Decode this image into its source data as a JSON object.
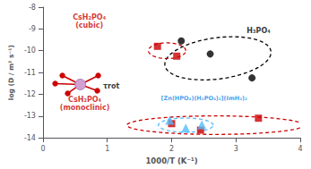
{
  "chart_data": {
    "type": "scatter",
    "xlabel": "1000/T (K⁻¹)",
    "ylabel": "log (D / m² s⁻¹)",
    "xlim": [
      0,
      4
    ],
    "ylim": [
      -14,
      -8
    ],
    "xticks": [
      0,
      1,
      2,
      3,
      4
    ],
    "yticks": [
      -14,
      -13,
      -12,
      -11,
      -10,
      -9,
      -8
    ],
    "grid": false,
    "series": [
      {
        "name": "H₃PO₄",
        "color": "#000000",
        "marker": "circle",
        "x": [
          2.15,
          2.6,
          3.25
        ],
        "values": [
          -9.55,
          -10.15,
          -11.25
        ]
      },
      {
        "name": "CsH₂PO₄\n(cubic)",
        "color": "#cc0000",
        "marker": "square",
        "x": [
          1.78,
          2.08
        ],
        "values": [
          -9.8,
          -10.25
        ]
      },
      {
        "name": "CsH₂PO₄\n(monoclinic)",
        "color": "#cc0000",
        "marker": "square",
        "x": [
          2.0,
          2.45,
          3.35
        ],
        "values": [
          -13.35,
          -13.65,
          -13.1
        ]
      },
      {
        "name": "[Zn(HPO₄)(H₂PO₄)₂](ImH₂)₂",
        "color": "#55bbff",
        "marker": "triangle",
        "x": [
          1.97,
          2.22,
          2.47
        ],
        "values": [
          -13.2,
          -13.55,
          -13.4
        ]
      }
    ],
    "ellipses": [
      {
        "cx": 2.72,
        "cy": -10.35,
        "width": 1.5,
        "height": 2.1,
        "angle": -28,
        "color": "#000000"
      },
      {
        "cx": 1.93,
        "cy": -10.0,
        "width": 0.58,
        "height": 0.72,
        "angle": 0,
        "color": "#cc0000"
      },
      {
        "cx": 2.68,
        "cy": -13.42,
        "width": 2.75,
        "height": 0.85,
        "angle": 0,
        "color": "#cc0000"
      },
      {
        "cx": 2.22,
        "cy": -13.42,
        "width": 0.85,
        "height": 0.65,
        "angle": 0,
        "color": "#55bbff"
      }
    ],
    "molecule": {
      "x": 0.58,
      "y": -11.55,
      "bond_color": "#cc0000",
      "atom_color": "#d4a0d4"
    },
    "annotations": [
      {
        "text": "CsH₂PO₄\n(cubic)",
        "x": 0.72,
        "y": -9.05,
        "color": "#cc0000"
      },
      {
        "text": "H₃PO₄",
        "x": 3.55,
        "y": -9.1,
        "color": "#000000"
      },
      {
        "text": "[Zn(HPO₄)(H₂PO₄)₂](ImH₂)₂",
        "x": 1.82,
        "y": -12.2,
        "color": "#1188ee"
      },
      {
        "text": "CsH₂PO₄\n(monoclinic)",
        "x": 0.65,
        "y": -12.85,
        "color": "#cc0000"
      },
      {
        "text": "τrot",
        "x": 0.92,
        "y": -11.65,
        "color": "#000000"
      }
    ]
  }
}
